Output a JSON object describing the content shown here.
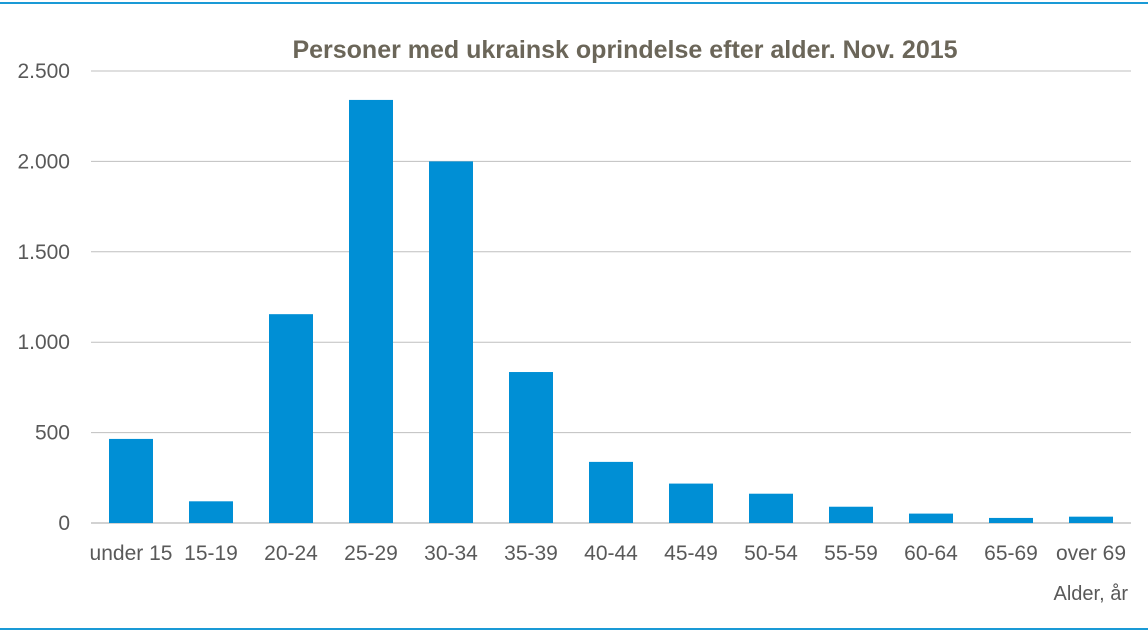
{
  "chart_data": {
    "type": "bar",
    "title": "Personer med ukrainsk oprindelse efter alder. Nov. 2015",
    "xlabel": "Alder, år",
    "ylabel": "",
    "categories": [
      "under 15",
      "15-19",
      "20-24",
      "25-29",
      "30-34",
      "35-39",
      "40-44",
      "45-49",
      "50-54",
      "55-59",
      "60-64",
      "65-69",
      "over 69"
    ],
    "values": [
      465,
      120,
      1155,
      2340,
      2000,
      835,
      338,
      218,
      162,
      90,
      52,
      28,
      35
    ],
    "ylim": [
      0,
      2500
    ],
    "yticks": [
      0,
      500,
      1000,
      1500,
      2000,
      2500
    ],
    "ytick_labels": [
      "0",
      "500",
      "1.000",
      "1.500",
      "2.000",
      "2.500"
    ],
    "grid": true,
    "legend": "none",
    "bar_color": "#008fd5",
    "grid_color": "#bfbfbf",
    "title_color": "#6b6659",
    "text_color": "#595959",
    "rule_color": "#1a9ad6"
  }
}
